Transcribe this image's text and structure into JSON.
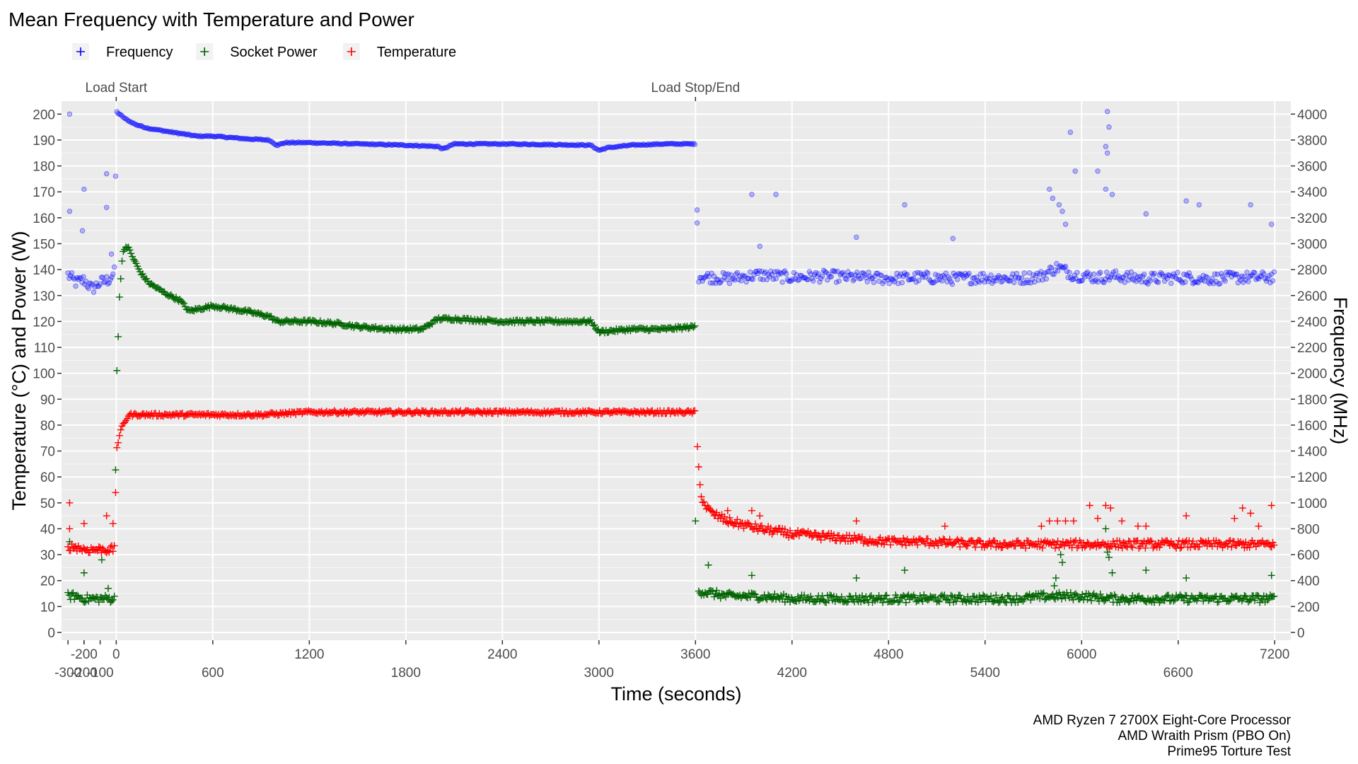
{
  "chart_data": {
    "type": "scatter",
    "title": "Mean Frequency with Temperature and Power",
    "xlabel": "Time (seconds)",
    "ylabel": "Temperature (°C) and Power (W)",
    "y2label": "Frequency (MHz)",
    "xlim": [
      -340,
      7300
    ],
    "ylim": [
      -3,
      205
    ],
    "y2lim": [
      -60,
      4100
    ],
    "x_ticks": [
      0,
      600,
      1200,
      1800,
      2400,
      3000,
      3600,
      4200,
      4800,
      5400,
      6000,
      6600,
      7200
    ],
    "x_ticks_lower": [
      -300,
      -200,
      -100,
      600,
      1800,
      3000,
      4200,
      5400,
      6600
    ],
    "x_ticks_upper": [
      -200,
      0,
      1200,
      2400,
      3600,
      4800,
      6000,
      7200
    ],
    "x_tick_labels": {
      "-300": "-300",
      "-200": "-200",
      "-100": "-100",
      "0": "0",
      "600": "600",
      "1200": "1200",
      "1800": "1800",
      "2400": "2400",
      "3000": "3000",
      "3600": "3600",
      "4200": "4200",
      "4800": "4800",
      "5400": "5400",
      "6000": "6000",
      "6600": "6600",
      "7200": "7200"
    },
    "y_ticks": [
      0,
      10,
      20,
      30,
      40,
      50,
      60,
      70,
      80,
      90,
      100,
      110,
      120,
      130,
      140,
      150,
      160,
      170,
      180,
      190,
      200
    ],
    "y_tick_labels": [
      "0",
      "10",
      "20",
      "30",
      "40",
      "50",
      "60",
      "70",
      "80",
      "90",
      "100",
      "110",
      "120",
      "130",
      "140",
      "150",
      "160",
      "170",
      "180",
      "190",
      "200"
    ],
    "y2_ticks": [
      0,
      200,
      400,
      600,
      800,
      1000,
      1200,
      1400,
      1600,
      1800,
      2000,
      2200,
      2400,
      2600,
      2800,
      3000,
      3200,
      3400,
      3600,
      3800,
      4000
    ],
    "y2_tick_labels": [
      "0",
      "200",
      "400",
      "600",
      "800",
      "1000",
      "1200",
      "1400",
      "1600",
      "1800",
      "2000",
      "2200",
      "2400",
      "2600",
      "2800",
      "3000",
      "3200",
      "3400",
      "3600",
      "3800",
      "4000"
    ],
    "legend_position": "top-left",
    "grid": true,
    "annotations": [
      {
        "x": 0,
        "label": "Load Start"
      },
      {
        "x": 3600,
        "label": "Load Stop/End"
      }
    ],
    "caption": [
      "AMD Ryzen 7 2700X Eight-Core Processor",
      "AMD Wraith Prism (PBO On)",
      "Prime95 Torture Test"
    ],
    "series": [
      {
        "name": "Frequency",
        "axis": "right",
        "color": "#0000ff",
        "marker": "circle",
        "points": [
          [
            -300,
            2760
          ],
          [
            -250,
            2700
          ],
          [
            -200,
            2720
          ],
          [
            -150,
            2650
          ],
          [
            -100,
            2700
          ],
          [
            -50,
            2720
          ],
          [
            -10,
            2780
          ],
          [
            0,
            4020
          ],
          [
            60,
            3960
          ],
          [
            120,
            3920
          ],
          [
            200,
            3890
          ],
          [
            300,
            3870
          ],
          [
            400,
            3850
          ],
          [
            500,
            3830
          ],
          [
            600,
            3830
          ],
          [
            800,
            3810
          ],
          [
            950,
            3800
          ],
          [
            1000,
            3760
          ],
          [
            1050,
            3780
          ],
          [
            1200,
            3780
          ],
          [
            1500,
            3770
          ],
          [
            1800,
            3760
          ],
          [
            2000,
            3750
          ],
          [
            2030,
            3730
          ],
          [
            2100,
            3770
          ],
          [
            2400,
            3770
          ],
          [
            2700,
            3765
          ],
          [
            2950,
            3760
          ],
          [
            3000,
            3720
          ],
          [
            3050,
            3740
          ],
          [
            3200,
            3760
          ],
          [
            3400,
            3770
          ],
          [
            3600,
            3770
          ],
          [
            3620,
            2750
          ],
          [
            3800,
            2730
          ],
          [
            4000,
            2760
          ],
          [
            4200,
            2740
          ],
          [
            4400,
            2750
          ],
          [
            4600,
            2740
          ],
          [
            4800,
            2730
          ],
          [
            5000,
            2740
          ],
          [
            5200,
            2730
          ],
          [
            5400,
            2740
          ],
          [
            5600,
            2730
          ],
          [
            5750,
            2750
          ],
          [
            5850,
            2820
          ],
          [
            5950,
            2760
          ],
          [
            6100,
            2740
          ],
          [
            6200,
            2750
          ],
          [
            6400,
            2730
          ],
          [
            6600,
            2740
          ],
          [
            6800,
            2730
          ],
          [
            7000,
            2740
          ],
          [
            7200,
            2740
          ]
        ],
        "outliers": [
          [
            -290,
            4000
          ],
          [
            -290,
            3250
          ],
          [
            -200,
            3420
          ],
          [
            -210,
            3100
          ],
          [
            -60,
            3540
          ],
          [
            -60,
            3280
          ],
          [
            -30,
            2920
          ],
          [
            3610,
            3260
          ],
          [
            3610,
            3160
          ],
          [
            3950,
            3380
          ],
          [
            4100,
            3380
          ],
          [
            4000,
            2980
          ],
          [
            4600,
            3050
          ],
          [
            4900,
            3300
          ],
          [
            5200,
            3040
          ],
          [
            5800,
            3420
          ],
          [
            5820,
            3350
          ],
          [
            5860,
            3300
          ],
          [
            5880,
            3250
          ],
          [
            5900,
            3150
          ],
          [
            5930,
            3860
          ],
          [
            5960,
            3560
          ],
          [
            6100,
            3560
          ],
          [
            6150,
            3420
          ],
          [
            6160,
            4020
          ],
          [
            6170,
            3900
          ],
          [
            6150,
            3750
          ],
          [
            6160,
            3700
          ],
          [
            6190,
            3380
          ],
          [
            6400,
            3230
          ],
          [
            6650,
            3330
          ],
          [
            6730,
            3300
          ],
          [
            7050,
            3300
          ],
          [
            7180,
            3150
          ]
        ]
      },
      {
        "name": "Socket Power",
        "axis": "left",
        "color": "#006400",
        "marker": "plus",
        "points": [
          [
            -300,
            14
          ],
          [
            -250,
            14
          ],
          [
            -200,
            13
          ],
          [
            -150,
            13
          ],
          [
            -100,
            13
          ],
          [
            -50,
            13
          ],
          [
            -10,
            13
          ],
          [
            0,
            96
          ],
          [
            10,
            110
          ],
          [
            20,
            130
          ],
          [
            40,
            146
          ],
          [
            60,
            149
          ],
          [
            80,
            148
          ],
          [
            100,
            145
          ],
          [
            150,
            139
          ],
          [
            200,
            135
          ],
          [
            300,
            131
          ],
          [
            400,
            128
          ],
          [
            450,
            124
          ],
          [
            600,
            126
          ],
          [
            800,
            124
          ],
          [
            950,
            122
          ],
          [
            1000,
            120
          ],
          [
            1200,
            120
          ],
          [
            1400,
            119
          ],
          [
            1500,
            118
          ],
          [
            1700,
            117
          ],
          [
            1900,
            117
          ],
          [
            2000,
            121
          ],
          [
            2100,
            121
          ],
          [
            2400,
            120
          ],
          [
            2700,
            120
          ],
          [
            2950,
            120
          ],
          [
            3000,
            116
          ],
          [
            3200,
            117
          ],
          [
            3400,
            117
          ],
          [
            3600,
            118
          ],
          [
            3620,
            16
          ],
          [
            3800,
            14
          ],
          [
            4000,
            14
          ],
          [
            4200,
            13
          ],
          [
            4400,
            13
          ],
          [
            4600,
            13
          ],
          [
            4800,
            13
          ],
          [
            5000,
            13
          ],
          [
            5200,
            13
          ],
          [
            5400,
            13
          ],
          [
            5600,
            13
          ],
          [
            5800,
            14
          ],
          [
            6000,
            14
          ],
          [
            6200,
            13
          ],
          [
            6400,
            13
          ],
          [
            6600,
            13
          ],
          [
            6800,
            13
          ],
          [
            7000,
            13
          ],
          [
            7200,
            13
          ]
        ],
        "outliers": [
          [
            -290,
            35
          ],
          [
            -200,
            23
          ],
          [
            -90,
            28
          ],
          [
            -50,
            17
          ],
          [
            3600,
            43
          ],
          [
            3680,
            26
          ],
          [
            3950,
            22
          ],
          [
            4600,
            21
          ],
          [
            4900,
            24
          ],
          [
            5830,
            18
          ],
          [
            5840,
            21
          ],
          [
            5870,
            30
          ],
          [
            5880,
            27
          ],
          [
            6150,
            40
          ],
          [
            6160,
            31
          ],
          [
            6170,
            29
          ],
          [
            6190,
            23
          ],
          [
            6400,
            24
          ],
          [
            6650,
            21
          ],
          [
            7180,
            22
          ]
        ]
      },
      {
        "name": "Temperature",
        "axis": "left",
        "color": "#ff0000",
        "marker": "plus",
        "points": [
          [
            -300,
            33
          ],
          [
            -250,
            33
          ],
          [
            -200,
            32
          ],
          [
            -150,
            32
          ],
          [
            -100,
            32
          ],
          [
            -50,
            32
          ],
          [
            -10,
            32
          ],
          [
            0,
            70
          ],
          [
            20,
            76
          ],
          [
            40,
            80
          ],
          [
            60,
            82
          ],
          [
            80,
            84
          ],
          [
            100,
            84
          ],
          [
            300,
            84
          ],
          [
            600,
            84
          ],
          [
            900,
            84
          ],
          [
            1200,
            85
          ],
          [
            1800,
            85
          ],
          [
            2400,
            85
          ],
          [
            3000,
            85
          ],
          [
            3600,
            85
          ],
          [
            3605,
            80
          ],
          [
            3615,
            68
          ],
          [
            3625,
            58
          ],
          [
            3640,
            52
          ],
          [
            3660,
            49
          ],
          [
            3700,
            46
          ],
          [
            3800,
            43
          ],
          [
            4000,
            40
          ],
          [
            4200,
            38
          ],
          [
            4400,
            37
          ],
          [
            4600,
            36
          ],
          [
            4800,
            35
          ],
          [
            5000,
            35
          ],
          [
            5400,
            34
          ],
          [
            5800,
            34
          ],
          [
            6200,
            34
          ],
          [
            6600,
            34
          ],
          [
            7000,
            34
          ],
          [
            7200,
            34
          ]
        ],
        "outliers": [
          [
            -290,
            50
          ],
          [
            -290,
            40
          ],
          [
            -200,
            42
          ],
          [
            -60,
            45
          ],
          [
            -20,
            42
          ],
          [
            3800,
            47
          ],
          [
            3950,
            47
          ],
          [
            4000,
            45
          ],
          [
            4600,
            43
          ],
          [
            5150,
            41
          ],
          [
            5750,
            41
          ],
          [
            5800,
            43
          ],
          [
            5850,
            43
          ],
          [
            5900,
            43
          ],
          [
            5950,
            43
          ],
          [
            6050,
            49
          ],
          [
            6100,
            44
          ],
          [
            6150,
            49
          ],
          [
            6180,
            48
          ],
          [
            6250,
            43
          ],
          [
            6350,
            41
          ],
          [
            6400,
            41
          ],
          [
            6650,
            45
          ],
          [
            6950,
            44
          ],
          [
            7000,
            48
          ],
          [
            7050,
            46
          ],
          [
            7100,
            41
          ],
          [
            7180,
            49
          ]
        ]
      }
    ]
  }
}
